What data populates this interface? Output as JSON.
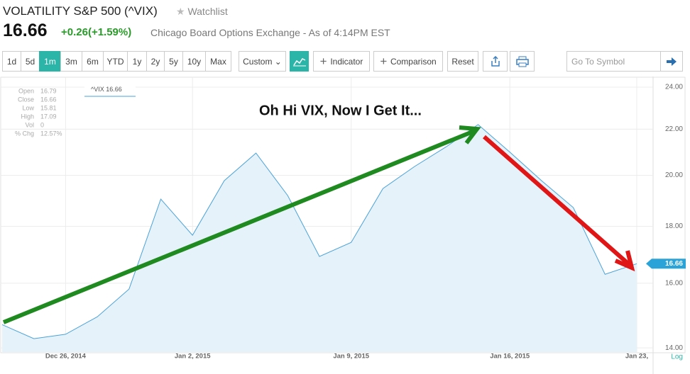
{
  "header": {
    "title": "VOLATILITY S&P 500 (^VIX)",
    "watchlist": "Watchlist",
    "price": "16.66",
    "change": "+0.26(+1.59%)",
    "exchange": "Chicago Board Options Exchange - As of 4:14PM EST"
  },
  "toolbar": {
    "ranges": [
      "1d",
      "5d",
      "1m",
      "3m",
      "6m",
      "YTD",
      "1y",
      "2y",
      "5y",
      "10y",
      "Max"
    ],
    "active_range": "1m",
    "custom": "Custom",
    "indicator": "Indicator",
    "comparison": "Comparison",
    "reset": "Reset",
    "search_placeholder": "Go To Symbol"
  },
  "info_panel": [
    {
      "label": "Open",
      "value": "16.79"
    },
    {
      "label": "Close",
      "value": "16.66"
    },
    {
      "label": "Low",
      "value": "15.81"
    },
    {
      "label": "High",
      "value": "17.09"
    },
    {
      "label": "Vol",
      "value": "0"
    },
    {
      "label": "% Chg",
      "value": "12.57%"
    }
  ],
  "chart_data": {
    "type": "line",
    "annotation": "Oh Hi VIX, Now I Get It...",
    "scale_label": "Log",
    "categories": [
      null,
      null,
      "Dec 26, 2014",
      null,
      null,
      null,
      "Jan 2, 2015",
      null,
      null,
      null,
      null,
      "Jan 9, 2015",
      null,
      null,
      null,
      null,
      "Jan 16, 2015",
      null,
      null,
      null,
      "Jan 23,"
    ],
    "series": [
      {
        "name": "^VIX",
        "color": "#4aa3d8",
        "values": [
          14.69,
          14.27,
          14.4,
          14.93,
          15.81,
          19.04,
          17.67,
          19.78,
          20.94,
          19.18,
          16.91,
          17.41,
          19.46,
          20.37,
          21.22,
          22.21,
          20.98,
          19.78,
          18.71,
          16.3,
          16.66
        ]
      }
    ],
    "ylim": [
      13.88,
      24.46
    ],
    "log_scale": true,
    "grid": true,
    "yticks": [
      {
        "value": 14,
        "label": "14.00"
      },
      {
        "value": 16,
        "label": "16.00"
      },
      {
        "value": 18,
        "label": "18.00"
      },
      {
        "value": 20,
        "label": "20.00"
      },
      {
        "value": 22,
        "label": "22.00"
      },
      {
        "value": 24,
        "label": "24.00"
      }
    ]
  }
}
